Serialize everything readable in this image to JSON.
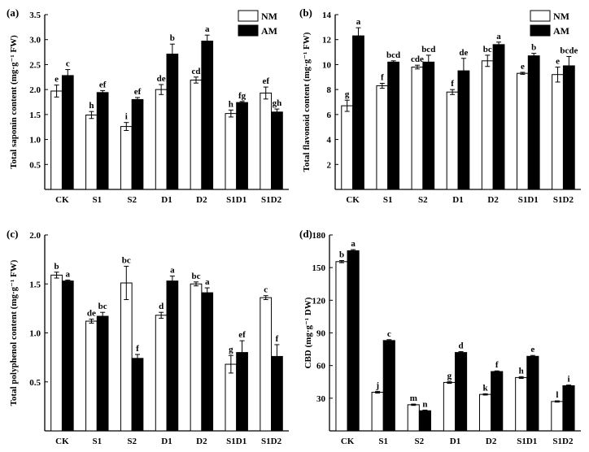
{
  "legend": {
    "entries": [
      {
        "name": "NM",
        "color": "#ffffff"
      },
      {
        "name": "AM",
        "color": "#000000"
      }
    ]
  },
  "chart_data": [
    {
      "id": "a",
      "type": "bar",
      "panel_label": "(a)",
      "ylabel": "Total saponin content (mg·g⁻¹ FW)",
      "categories": [
        "CK",
        "S1",
        "S2",
        "D1",
        "D2",
        "S1D1",
        "S1D2"
      ],
      "ylim": [
        0,
        3.5
      ],
      "yticks": [
        0.5,
        1.0,
        1.5,
        2.0,
        2.5,
        3.0,
        3.5
      ],
      "ytick_labels": [
        "0.5",
        "1.0",
        "1.5",
        "2.0",
        "2.5",
        "3.0",
        "3.5"
      ],
      "legend_position": "top-right",
      "series": [
        {
          "name": "NM",
          "values": [
            1.97,
            1.49,
            1.26,
            2.0,
            2.19,
            1.52,
            1.93
          ],
          "errors": [
            0.12,
            0.07,
            0.08,
            0.1,
            0.06,
            0.07,
            0.12
          ],
          "labels": [
            "e",
            "h",
            "i",
            "de",
            "cd",
            "h",
            "ef"
          ]
        },
        {
          "name": "AM",
          "values": [
            2.28,
            1.94,
            1.8,
            2.71,
            2.97,
            1.74,
            1.55
          ],
          "errors": [
            0.12,
            0.04,
            0.04,
            0.2,
            0.12,
            0.02,
            0.06
          ],
          "labels": [
            "c",
            "ef",
            "ef",
            "b",
            "a",
            "fg",
            "gh"
          ]
        }
      ]
    },
    {
      "id": "b",
      "type": "bar",
      "panel_label": "(b)",
      "ylabel": "Total flavonoid content (mg·g⁻¹ FW)",
      "categories": [
        "CK",
        "S1",
        "S2",
        "D1",
        "D2",
        "S1D1",
        "S1D2"
      ],
      "ylim": [
        0,
        14
      ],
      "yticks": [
        2,
        4,
        6,
        8,
        10,
        12,
        14
      ],
      "ytick_labels": [
        "2",
        "4",
        "6",
        "8",
        "10",
        "12",
        "14"
      ],
      "legend_position": "top-right",
      "series": [
        {
          "name": "NM",
          "values": [
            6.7,
            8.3,
            9.8,
            7.8,
            10.3,
            9.3,
            9.2
          ],
          "errors": [
            0.45,
            0.2,
            0.15,
            0.2,
            0.45,
            0.08,
            0.6
          ],
          "labels": [
            "g",
            "f",
            "cde",
            "f",
            "bc",
            "e",
            "e"
          ]
        },
        {
          "name": "AM",
          "values": [
            12.3,
            10.2,
            10.2,
            9.5,
            11.6,
            10.7,
            9.9
          ],
          "errors": [
            0.65,
            0.1,
            0.55,
            1.0,
            0.2,
            0.2,
            0.75
          ],
          "labels": [
            "a",
            "bcd",
            "bcd",
            "de",
            "a",
            "b",
            "bcde"
          ]
        }
      ]
    },
    {
      "id": "c",
      "type": "bar",
      "panel_label": "(c)",
      "ylabel": "Total polyphenol content (mg·g⁻¹ FW)",
      "categories": [
        "CK",
        "S1",
        "S2",
        "D1",
        "D2",
        "S1D1",
        "S1D2"
      ],
      "ylim": [
        0,
        2.0
      ],
      "yticks": [
        0.5,
        1.0,
        1.5,
        2.0
      ],
      "ytick_labels": [
        "0.5",
        "1.0",
        "1.5",
        "2.0"
      ],
      "series": [
        {
          "name": "NM",
          "values": [
            1.59,
            1.12,
            1.51,
            1.18,
            1.5,
            0.68,
            1.36
          ],
          "errors": [
            0.03,
            0.02,
            0.17,
            0.03,
            0.02,
            0.09,
            0.02
          ],
          "labels": [
            "b",
            "de",
            "bc",
            "d",
            "bc",
            "g",
            "c"
          ]
        },
        {
          "name": "AM",
          "values": [
            1.53,
            1.17,
            0.74,
            1.53,
            1.41,
            0.8,
            0.76
          ],
          "errors": [
            0.01,
            0.04,
            0.04,
            0.05,
            0.05,
            0.12,
            0.12
          ],
          "labels": [
            "a",
            "bc",
            "f",
            "a",
            "a",
            "ef",
            "f"
          ]
        }
      ]
    },
    {
      "id": "d",
      "type": "bar",
      "panel_label": "(d)",
      "ylabel": "CBD (mg·g⁻¹ DW)",
      "categories": [
        "CK",
        "S1",
        "S2",
        "D1",
        "D2",
        "S1D1",
        "S1D2"
      ],
      "ylim": [
        0,
        180
      ],
      "yticks": [
        30,
        60,
        90,
        120,
        150,
        180
      ],
      "ytick_labels": [
        "30",
        "60",
        "90",
        "120",
        "150",
        "180"
      ],
      "series": [
        {
          "name": "NM",
          "values": [
            155.5,
            35.5,
            24.0,
            44.5,
            33.5,
            49.0,
            27.0
          ],
          "errors": [
            1.0,
            0.8,
            0.6,
            0.8,
            0.6,
            0.8,
            0.6
          ],
          "labels": [
            "b",
            "j",
            "m",
            "g",
            "k",
            "h",
            "l"
          ]
        },
        {
          "name": "AM",
          "values": [
            165.5,
            83.0,
            18.5,
            72.0,
            54.5,
            68.5,
            41.5
          ],
          "errors": [
            1.0,
            0.8,
            0.6,
            0.8,
            0.6,
            0.8,
            0.6
          ],
          "labels": [
            "a",
            "c",
            "n",
            "d",
            "f",
            "e",
            "i"
          ]
        }
      ]
    }
  ]
}
